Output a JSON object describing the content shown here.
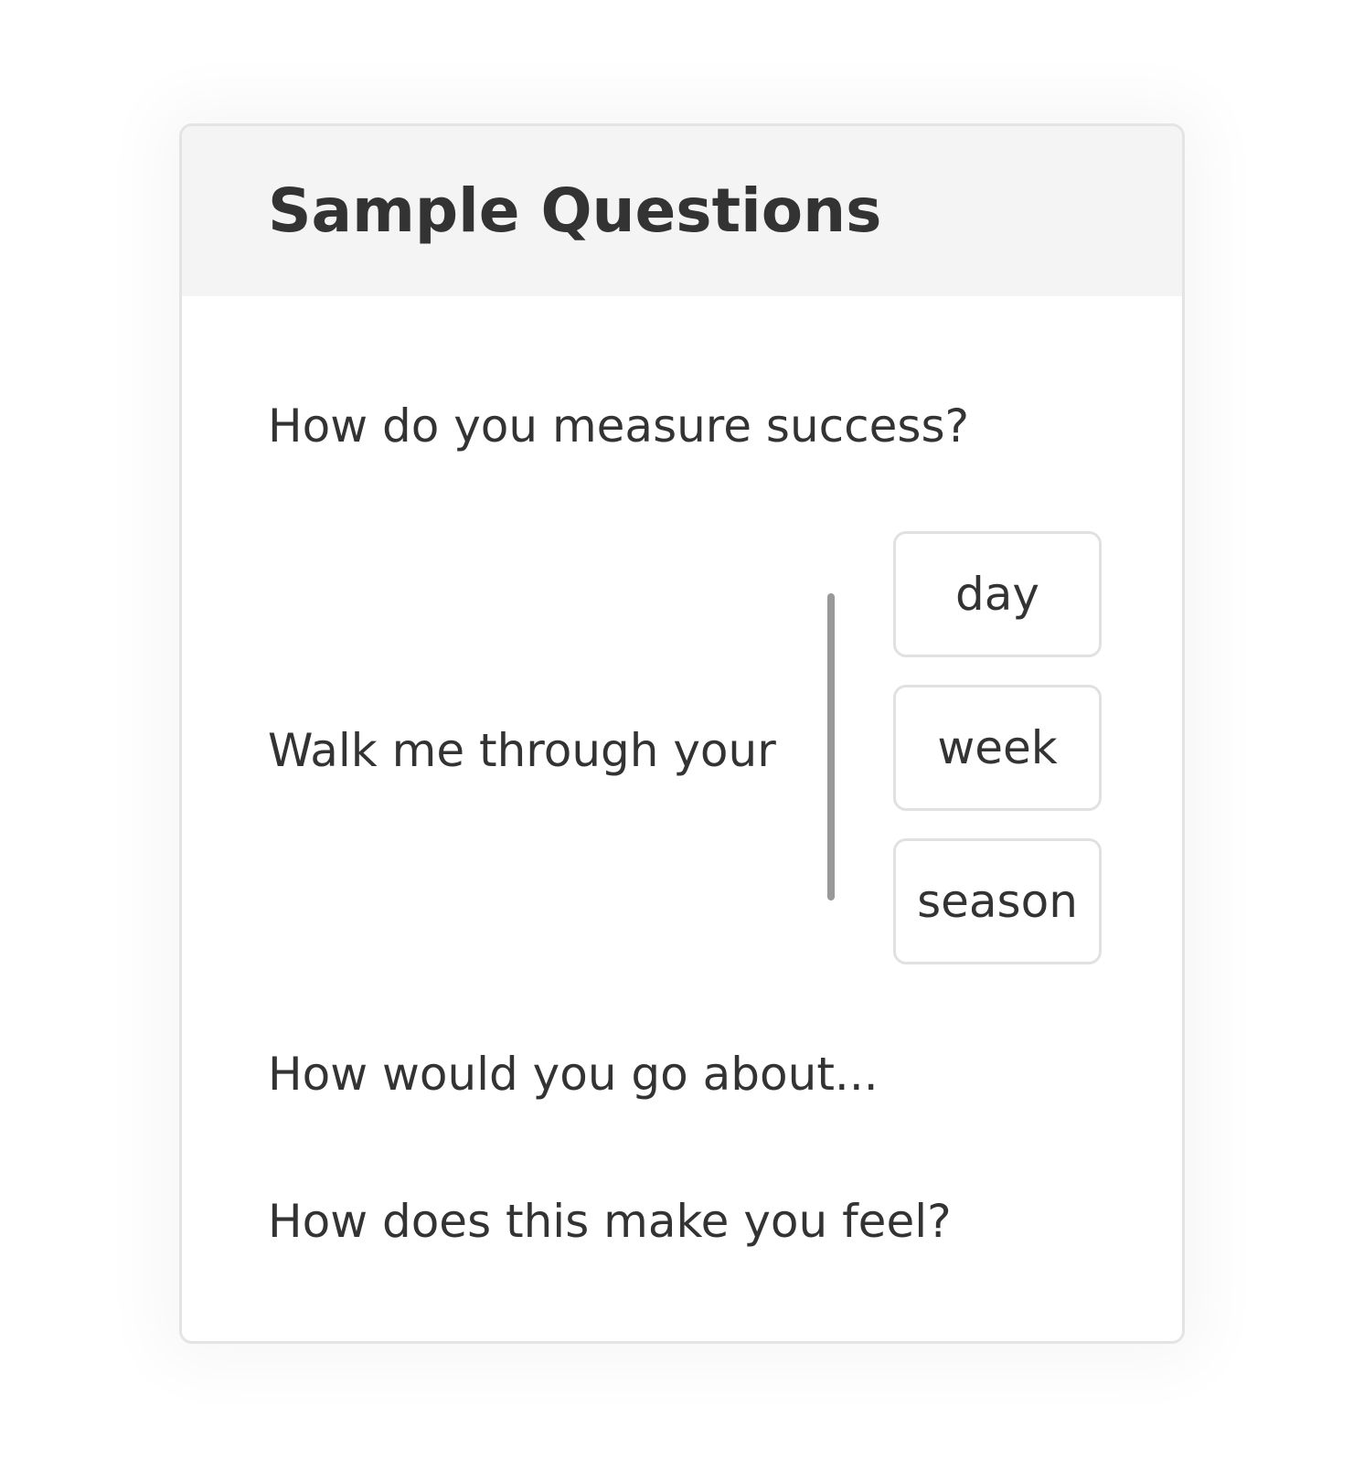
{
  "card": {
    "title": "Sample Questions"
  },
  "questions": {
    "q1": "How do you measure success?",
    "q2_label": "Walk me through your",
    "q2_options": [
      "day",
      "week",
      "season"
    ],
    "q3": "How would you go about...",
    "q4": "How does this make you feel?"
  }
}
